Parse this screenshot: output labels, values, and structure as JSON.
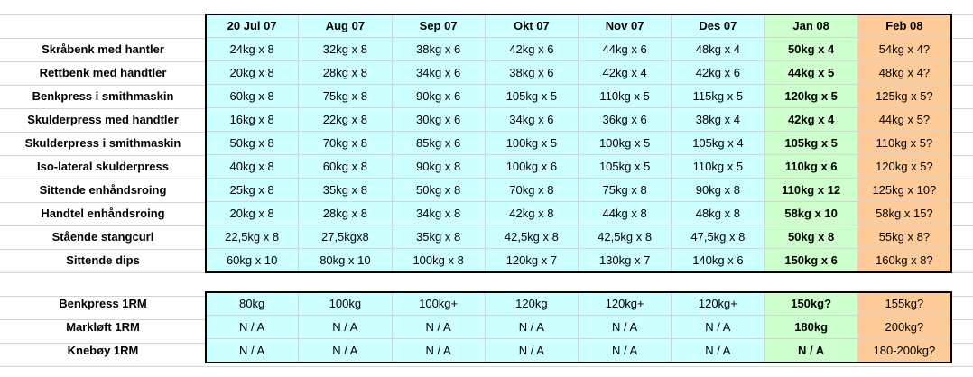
{
  "table": {
    "headers": [
      "20 Jul 07",
      "Aug 07",
      "Sep 07",
      "Okt 07",
      "Nov 07",
      "Des 07",
      "Jan 08",
      "Feb 08"
    ],
    "rows": [
      {
        "label": "Skråbenk med hantler",
        "cells": [
          "24kg x 8",
          "32kg x 8",
          "38kg x 6",
          "42kg x 6",
          "44kg x 6",
          "48kg x 4",
          "50kg x 4",
          "54kg x 4?"
        ]
      },
      {
        "label": "Rettbenk med handtler",
        "cells": [
          "20kg x 8",
          "28kg x 8",
          "34kg x 6",
          "38kg x 6",
          "42kg x 4",
          "42kg x 6",
          "44kg x 5",
          "48kg x 4?"
        ]
      },
      {
        "label": "Benkpress i smithmaskin",
        "cells": [
          "60kg x 8",
          "75kg x 8",
          "90kg x 6",
          "105kg x 5",
          "110kg x 5",
          "115kg x 5",
          "120kg x 5",
          "125kg x 5?"
        ]
      },
      {
        "label": "Skulderpress med handtler",
        "cells": [
          "16kg x 8",
          "22kg x 8",
          "30kg x 6",
          "34kg x 6",
          "36kg x 6",
          "38kg x 4",
          "42kg x 4",
          "44kg x 5?"
        ]
      },
      {
        "label": "Skulderpress i smithmaskin",
        "cells": [
          "50kg x 8",
          "70kg x 8",
          "85kg x 6",
          "100kg x 5",
          "100kg x 5",
          "105kg x 4",
          "105kg x 5",
          "110kg x 5?"
        ]
      },
      {
        "label": "Iso-lateral skulderpress",
        "cells": [
          "40kg x 8",
          "60kg x 8",
          "90kg x 8",
          "100kg x 6",
          "105kg x 5",
          "110kg x 5",
          "110kg x 6",
          "120kg x 5?"
        ]
      },
      {
        "label": "Sittende enhåndsroing",
        "cells": [
          "25kg x 8",
          "35kg x 8",
          "50kg x 8",
          "70kg x 8",
          "75kg x 8",
          "90kg x 8",
          "110kg x 12",
          "125kg x 10?"
        ]
      },
      {
        "label": "Handtel enhåndsroing",
        "cells": [
          "20kg x 8",
          "28kg x 8",
          "34kg x 8",
          "42kg x 8",
          "44kg x 8",
          "48kg x 8",
          "58kg x 10",
          "58kg x 15?"
        ]
      },
      {
        "label": "Stående stangcurl",
        "cells": [
          "22,5kg x 8",
          "27,5kgx8",
          "35kg x 8",
          "42,5kg x 8",
          "42,5kg x 8",
          "47,5kg x 8",
          "50kg x 8",
          "55kg x 8?"
        ]
      },
      {
        "label": "Sittende dips",
        "cells": [
          "60kg x 10",
          "80kg x 10",
          "100kg x 8",
          "120kg x 7",
          "130kg x 7",
          "140kg x 6",
          "150kg x 6",
          "160kg x 8?"
        ]
      }
    ]
  },
  "rm_table": {
    "rows": [
      {
        "label": "Benkpress 1RM",
        "cells": [
          "80kg",
          "100kg",
          "100kg+",
          "120kg",
          "120kg+",
          "120kg+",
          "150kg?",
          "155kg?"
        ]
      },
      {
        "label": "Markløft 1RM",
        "cells": [
          "N / A",
          "N / A",
          "N / A",
          "N / A",
          "N / A",
          "N / A",
          "180kg",
          "200kg?"
        ]
      },
      {
        "label": "Knebøy 1RM",
        "cells": [
          "N / A",
          "N / A",
          "N / A",
          "N / A",
          "N / A",
          "N / A",
          "N / A",
          "180-200kg?"
        ]
      }
    ]
  }
}
